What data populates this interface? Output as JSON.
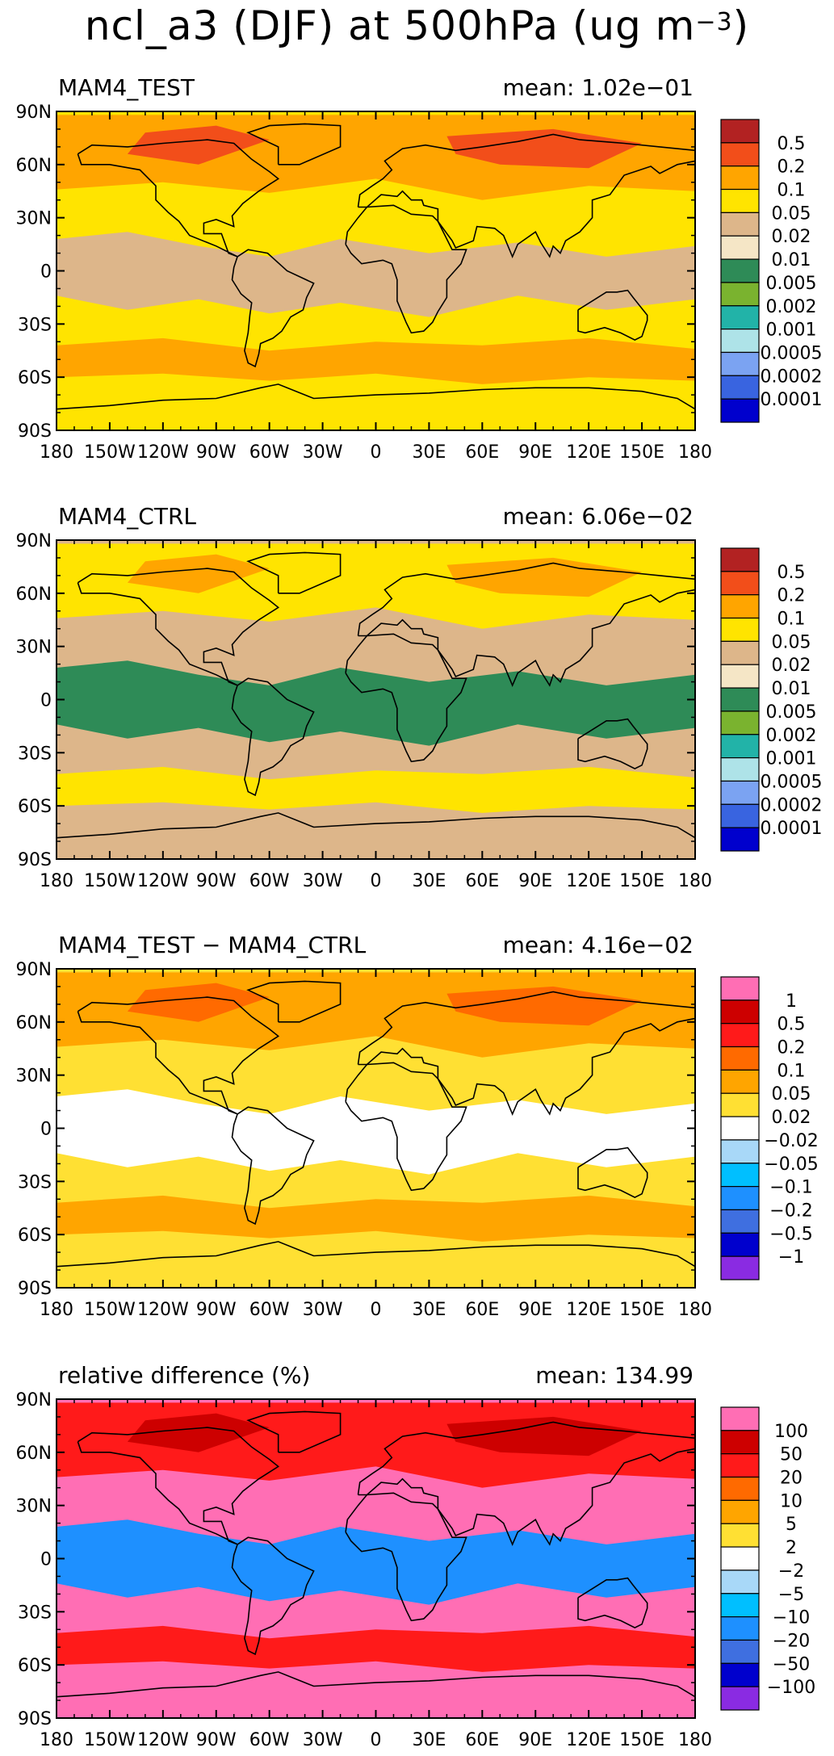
{
  "title": {
    "main": "ncl_a3 (DJF) at 500hPa (ug m",
    "sup": "−3",
    "close": ")"
  },
  "axis": {
    "lat_labels": [
      "90N",
      "60N",
      "30N",
      "0",
      "30S",
      "60S",
      "90S"
    ],
    "lon_labels": [
      "180",
      "150W",
      "120W",
      "90W",
      "60W",
      "30W",
      "0",
      "30E",
      "60E",
      "90E",
      "120E",
      "150E",
      "180"
    ]
  },
  "panels": [
    {
      "name": "MAM4_TEST",
      "mean_label": "mean: 1.02e−01",
      "levels": [
        "0.5",
        "0.2",
        "0.1",
        "0.05",
        "0.02",
        "0.01",
        "0.005",
        "0.002",
        "0.001",
        "0.0005",
        "0.0002",
        "0.0001"
      ],
      "colors": [
        "#b22222",
        "#f24e1a",
        "#ffa500",
        "#ffe400",
        "#ddb68a",
        "#f5e6c6",
        "#2e8b57",
        "#7ab32f",
        "#22b3a8",
        "#aee3e8",
        "#7ba3f2",
        "#3964e0",
        "#0000cd"
      ],
      "dominant_band": 3,
      "secondary_band": 2,
      "low_band": 4
    },
    {
      "name": "MAM4_CTRL",
      "mean_label": "mean: 6.06e−02",
      "levels": [
        "0.5",
        "0.2",
        "0.1",
        "0.05",
        "0.02",
        "0.01",
        "0.005",
        "0.002",
        "0.001",
        "0.0005",
        "0.0002",
        "0.0001"
      ],
      "colors": [
        "#b22222",
        "#f24e1a",
        "#ffa500",
        "#ffe400",
        "#ddb68a",
        "#f5e6c6",
        "#2e8b57",
        "#7ab32f",
        "#22b3a8",
        "#aee3e8",
        "#7ba3f2",
        "#3964e0",
        "#0000cd"
      ],
      "dominant_band": 4,
      "secondary_band": 3,
      "low_band": 6
    },
    {
      "name": "MAM4_TEST − MAM4_CTRL",
      "mean_label": "mean: 4.16e−02",
      "levels": [
        "1",
        "0.5",
        "0.2",
        "0.1",
        "0.05",
        "0.02",
        "−0.02",
        "−0.05",
        "−0.1",
        "−0.2",
        "−0.5",
        "−1"
      ],
      "colors": [
        "#ff6eb4",
        "#cd0000",
        "#ff1a1a",
        "#ff6a00",
        "#ffa500",
        "#ffe033",
        "#ffffff",
        "#a8d8f8",
        "#00bfff",
        "#1e90ff",
        "#3f6fe0",
        "#0000cd",
        "#8a2be2"
      ],
      "dominant_band": 5,
      "secondary_band": 4,
      "low_band": 6
    },
    {
      "name": "relative difference (%)",
      "mean_label": "mean: 134.99",
      "levels": [
        "100",
        "50",
        "20",
        "10",
        "5",
        "2",
        "−2",
        "−5",
        "−10",
        "−20",
        "−50",
        "−100"
      ],
      "colors": [
        "#ff6eb4",
        "#cd0000",
        "#ff1a1a",
        "#ff6a00",
        "#ffa500",
        "#ffe033",
        "#ffffff",
        "#a8d8f8",
        "#00bfff",
        "#1e90ff",
        "#3f6fe0",
        "#0000cd",
        "#8a2be2"
      ],
      "dominant_band": 0,
      "secondary_band": 2,
      "low_band": 9
    }
  ]
}
